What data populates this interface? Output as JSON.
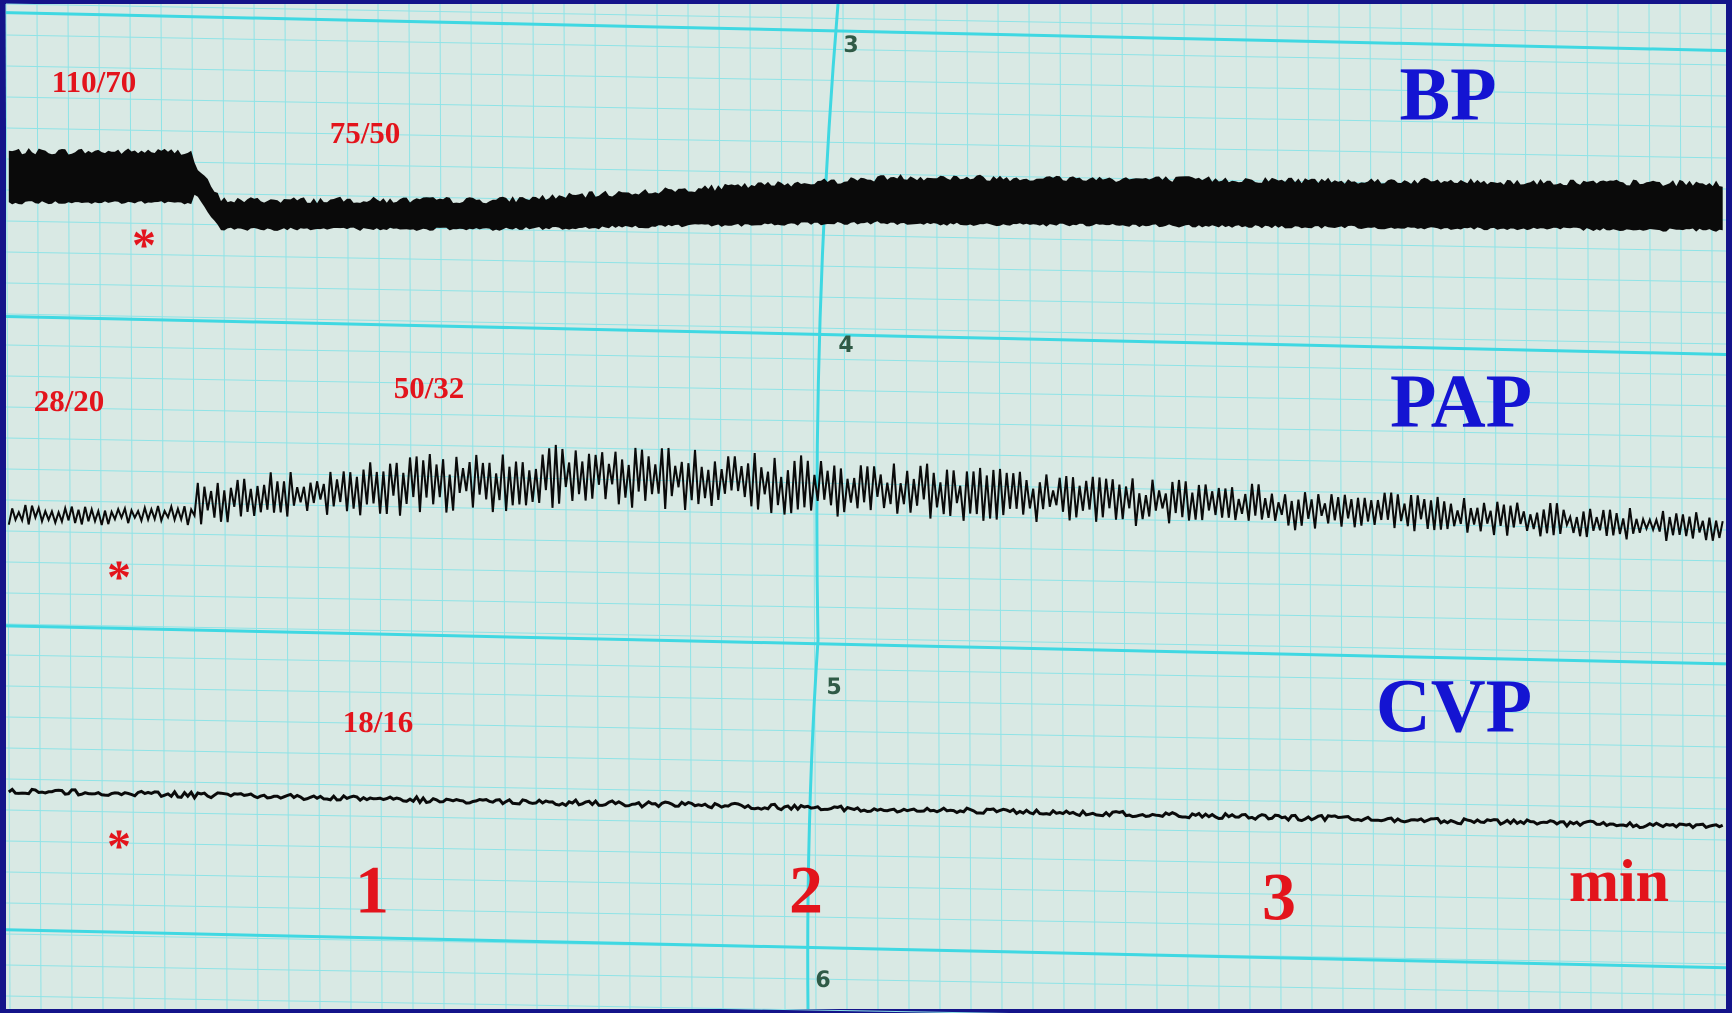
{
  "grid_numbers": [
    "3",
    "4",
    "5",
    "6"
  ],
  "traces": [
    {
      "label": "BP",
      "pressures": [
        "110/70",
        "75/50"
      ],
      "marker": "*"
    },
    {
      "label": "PAP",
      "pressures": [
        "28/20",
        "50/32"
      ],
      "marker": "*"
    },
    {
      "label": "CVP",
      "pressures": [
        "18/16"
      ],
      "marker": "*"
    }
  ],
  "time_axis": {
    "ticks": [
      "1",
      "2",
      "3"
    ],
    "unit": "min"
  }
}
